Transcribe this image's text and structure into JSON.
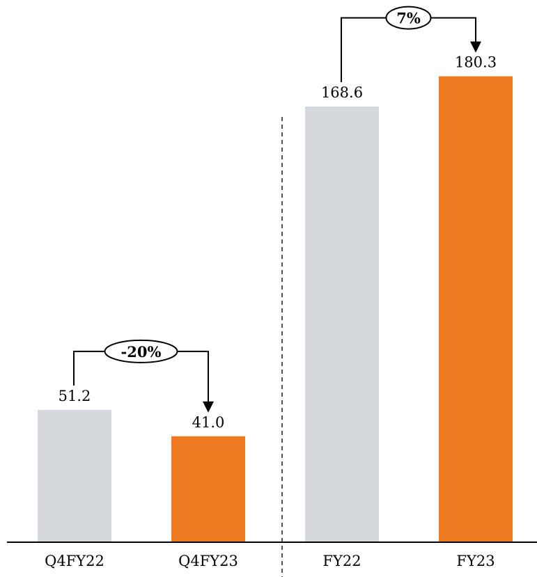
{
  "chart_data": {
    "type": "bar",
    "title": "",
    "xlabel": "",
    "ylabel": "",
    "ylim": [
      0,
      195
    ],
    "grid": false,
    "legend": "none",
    "categories": [
      "Q4FY22",
      "Q4FY23",
      "FY22",
      "FY23"
    ],
    "values": [
      51.2,
      41.0,
      168.6,
      180.3
    ],
    "value_labels": [
      "51.2",
      "41.0",
      "168.6",
      "180.3"
    ],
    "bar_colors": [
      "#d5d9dd",
      "#f07a22",
      "#d5d9dd",
      "#f07a22"
    ],
    "changes": [
      {
        "from": 0,
        "to": 1,
        "label": "-20%"
      },
      {
        "from": 2,
        "to": 3,
        "label": "7%"
      }
    ],
    "divider_after_index": 1
  }
}
